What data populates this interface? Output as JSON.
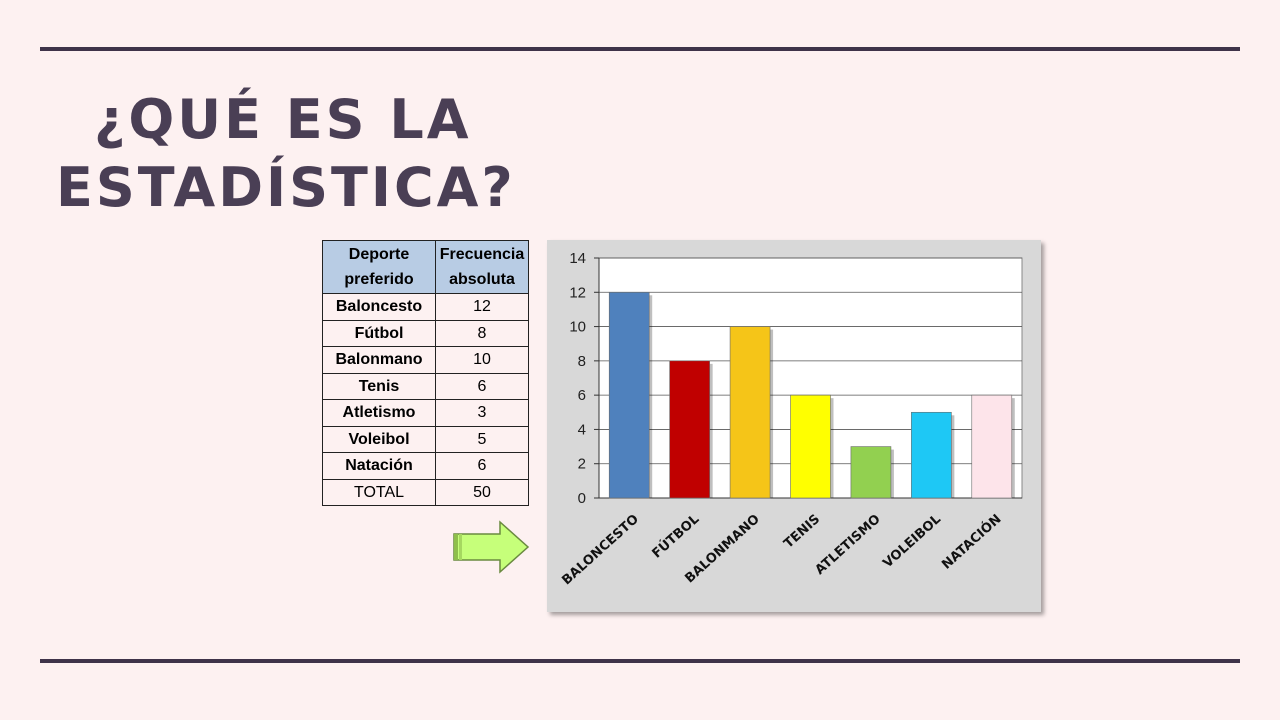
{
  "slide": {
    "title_line1": "¿QUÉ ES LA",
    "title_line2": "ESTADÍSTICA?"
  },
  "table": {
    "header_col1": "Deporte preferido",
    "header_col2": "Frecuencia absoluta",
    "rows": [
      {
        "sport": "Baloncesto",
        "freq": "12"
      },
      {
        "sport": "Fútbol",
        "freq": "8"
      },
      {
        "sport": "Balonmano",
        "freq": "10"
      },
      {
        "sport": "Tenis",
        "freq": "6"
      },
      {
        "sport": "Atletismo",
        "freq": "3"
      },
      {
        "sport": "Voleibol",
        "freq": "5"
      },
      {
        "sport": "Natación",
        "freq": "6"
      }
    ],
    "total_label": "TOTAL",
    "total_value": "50"
  },
  "chart_data": {
    "type": "bar",
    "categories": [
      "Baloncesto",
      "Fútbol",
      "Balonmano",
      "Tenis",
      "Atletismo",
      "Voleibol",
      "Natación"
    ],
    "values": [
      12,
      8,
      10,
      6,
      3,
      5,
      6
    ],
    "colors": [
      "#4f81bd",
      "#c00000",
      "#f5c518",
      "#ffff00",
      "#92d050",
      "#1ec8f5",
      "#fde4ea"
    ],
    "ylim": [
      0,
      14
    ],
    "yticks": [
      0,
      2,
      4,
      6,
      8,
      10,
      12,
      14
    ],
    "grid": true,
    "legend": "none",
    "title": "",
    "xlabel": "",
    "ylabel": ""
  }
}
